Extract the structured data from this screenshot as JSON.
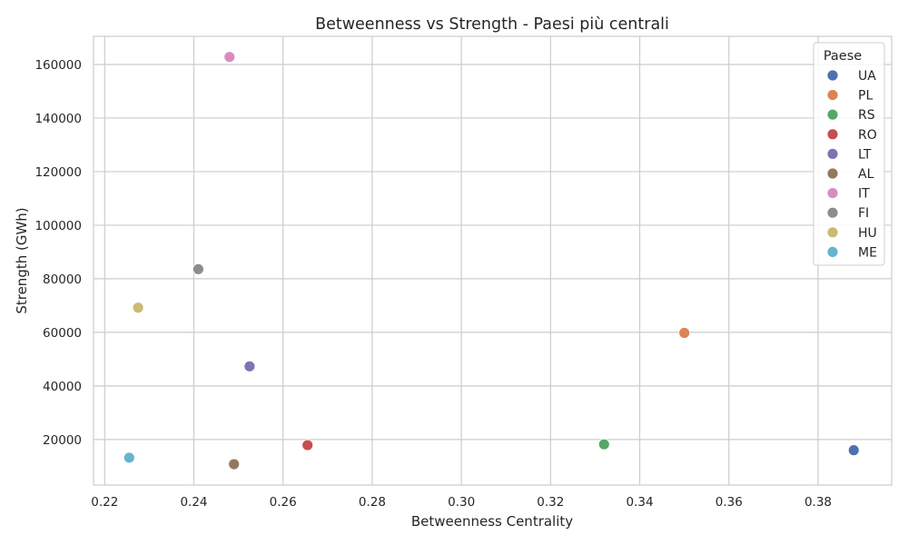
{
  "chart_data": {
    "type": "scatter",
    "title": "Betweenness vs Strength - Paesi più centrali",
    "xlabel": "Betweenness Centrality",
    "ylabel": "Strength (GWh)",
    "xlim": [
      0.2175,
      0.3965
    ],
    "ylim": [
      3000,
      170500
    ],
    "xticks": [
      0.22,
      0.24,
      0.26,
      0.28,
      0.3,
      0.32,
      0.34,
      0.36,
      0.38
    ],
    "xtick_labels": [
      "0.22",
      "0.24",
      "0.26",
      "0.28",
      "0.30",
      "0.32",
      "0.34",
      "0.36",
      "0.38"
    ],
    "yticks": [
      20000,
      40000,
      60000,
      80000,
      100000,
      120000,
      140000,
      160000
    ],
    "ytick_labels": [
      "20000",
      "40000",
      "60000",
      "80000",
      "100000",
      "120000",
      "140000",
      "160000"
    ],
    "grid": true,
    "legend": {
      "title": "Paese",
      "position": "top-right"
    },
    "series": [
      {
        "name": "UA",
        "color": "#4c72b0",
        "x": 0.388,
        "y": 16000
      },
      {
        "name": "PL",
        "color": "#dd8452",
        "x": 0.35,
        "y": 59800
      },
      {
        "name": "RS",
        "color": "#55a868",
        "x": 0.332,
        "y": 18200
      },
      {
        "name": "RO",
        "color": "#c44e52",
        "x": 0.2655,
        "y": 17900
      },
      {
        "name": "LT",
        "color": "#8172b3",
        "x": 0.2525,
        "y": 47300
      },
      {
        "name": "AL",
        "color": "#937860",
        "x": 0.249,
        "y": 10800
      },
      {
        "name": "IT",
        "color": "#da8bc3",
        "x": 0.248,
        "y": 162800
      },
      {
        "name": "FI",
        "color": "#8c8c8c",
        "x": 0.241,
        "y": 83600
      },
      {
        "name": "HU",
        "color": "#ccb974",
        "x": 0.2275,
        "y": 69200
      },
      {
        "name": "ME",
        "color": "#64b5cd",
        "x": 0.2255,
        "y": 13200
      }
    ]
  }
}
